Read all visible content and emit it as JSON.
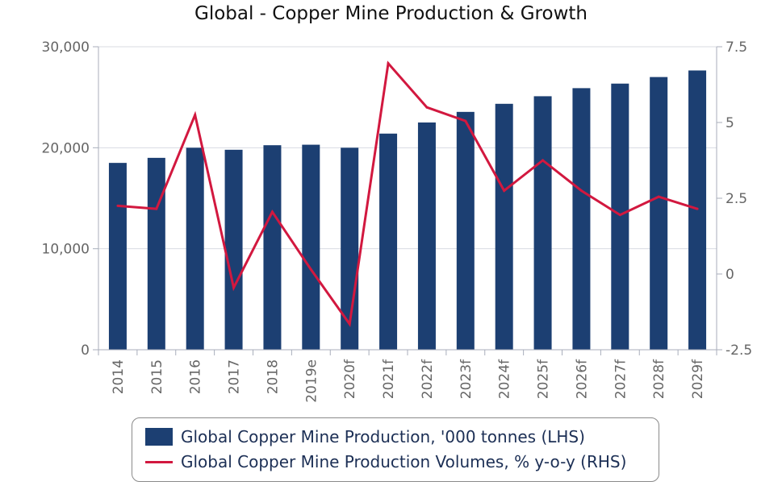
{
  "title": "Global - Copper Mine Production & Growth",
  "chart_data": {
    "type": "bar",
    "title": "Global - Copper Mine Production & Growth",
    "categories": [
      "2014",
      "2015",
      "2016",
      "2017",
      "2018",
      "2019e",
      "2020f",
      "2021f",
      "2022f",
      "2023f",
      "2024f",
      "2025f",
      "2026f",
      "2027f",
      "2028f",
      "2029f"
    ],
    "series": [
      {
        "name": "Global Copper Mine Production, '000 tonnes (LHS)",
        "type": "bar",
        "axis": "left",
        "color": "#1c3f72",
        "values": [
          18500,
          19000,
          20000,
          19800,
          20250,
          20300,
          20000,
          21400,
          22500,
          23550,
          24350,
          25100,
          25900,
          26350,
          27000,
          27650
        ]
      },
      {
        "name": "Global Copper Mine Production Volumes, % y-o-y (RHS)",
        "type": "line",
        "axis": "right",
        "color": "#d2183f",
        "values": [
          2.25,
          2.15,
          5.25,
          -0.45,
          2.05,
          0.15,
          -1.65,
          6.95,
          5.5,
          5.05,
          2.75,
          3.75,
          2.75,
          1.95,
          2.55,
          2.15
        ]
      }
    ],
    "y_left": {
      "ylim": [
        0,
        30000
      ],
      "ticks": [
        "0",
        "10,000",
        "20,000",
        "30,000"
      ],
      "tick_values": [
        0,
        10000,
        20000,
        30000
      ]
    },
    "y_right": {
      "ylim": [
        -2.5,
        7.5
      ],
      "ticks": [
        "-2.5",
        "0",
        "2.5",
        "5",
        "7.5"
      ],
      "tick_values": [
        -2.5,
        0,
        2.5,
        5,
        7.5
      ]
    },
    "xlabel": "",
    "ylabel": "",
    "grid": "horizontal",
    "legend_position": "bottom"
  }
}
